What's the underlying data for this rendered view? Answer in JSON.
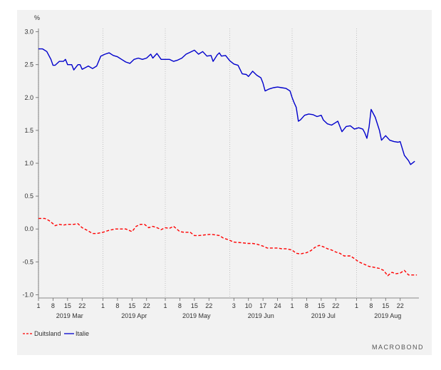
{
  "chart_data": {
    "type": "line",
    "ylabel": "%",
    "ylim": [
      -1.05,
      3.05
    ],
    "y_ticks": [
      "3.0",
      "2.5",
      "2.0",
      "1.5",
      "1.0",
      "0.5",
      "0.0",
      "-0.5",
      "-1.0"
    ],
    "y_tick_values": [
      3.0,
      2.5,
      2.0,
      1.5,
      1.0,
      0.5,
      0.0,
      -0.5,
      -1.0
    ],
    "x_range": [
      "2019-03-01",
      "2019-08-31"
    ],
    "x_ticks": [
      {
        "date": "2019-03-01",
        "label": "1"
      },
      {
        "date": "2019-03-08",
        "label": "8"
      },
      {
        "date": "2019-03-15",
        "label": "15"
      },
      {
        "date": "2019-03-22",
        "label": "22"
      },
      {
        "date": "2019-04-01",
        "label": "1"
      },
      {
        "date": "2019-04-08",
        "label": "8"
      },
      {
        "date": "2019-04-15",
        "label": "15"
      },
      {
        "date": "2019-04-22",
        "label": "22"
      },
      {
        "date": "2019-05-01",
        "label": "1"
      },
      {
        "date": "2019-05-08",
        "label": "8"
      },
      {
        "date": "2019-05-15",
        "label": "15"
      },
      {
        "date": "2019-05-22",
        "label": "22"
      },
      {
        "date": "2019-06-03",
        "label": "3"
      },
      {
        "date": "2019-06-10",
        "label": "10"
      },
      {
        "date": "2019-06-17",
        "label": "17"
      },
      {
        "date": "2019-06-24",
        "label": "24"
      },
      {
        "date": "2019-07-01",
        "label": "1"
      },
      {
        "date": "2019-07-08",
        "label": "8"
      },
      {
        "date": "2019-07-15",
        "label": "15"
      },
      {
        "date": "2019-07-22",
        "label": "22"
      },
      {
        "date": "2019-08-01",
        "label": "1"
      },
      {
        "date": "2019-08-08",
        "label": "8"
      },
      {
        "date": "2019-08-15",
        "label": "15"
      },
      {
        "date": "2019-08-22",
        "label": "22"
      }
    ],
    "month_labels": [
      {
        "date": "2019-03-16",
        "label": "2019 Mar"
      },
      {
        "date": "2019-04-16",
        "label": "2019 Apr"
      },
      {
        "date": "2019-05-16",
        "label": "2019 May"
      },
      {
        "date": "2019-06-16",
        "label": "2019 Jun"
      },
      {
        "date": "2019-07-16",
        "label": "2019 Jul"
      },
      {
        "date": "2019-08-16",
        "label": "2019 Aug"
      }
    ],
    "month_starts": [
      "2019-03-01",
      "2019-04-01",
      "2019-05-01",
      "2019-06-01",
      "2019-07-01",
      "2019-08-01"
    ],
    "grid": "vertical-dotted-month-starts",
    "legend_placement": "bottom-left",
    "series": [
      {
        "name": "Duitsland",
        "color": "#ff0000",
        "style": "dashed",
        "points": [
          [
            "2019-03-01",
            0.16
          ],
          [
            "2019-03-04",
            0.16
          ],
          [
            "2019-03-06",
            0.13
          ],
          [
            "2019-03-08",
            0.08
          ],
          [
            "2019-03-09",
            0.05
          ],
          [
            "2019-03-11",
            0.07
          ],
          [
            "2019-03-13",
            0.06
          ],
          [
            "2019-03-15",
            0.07
          ],
          [
            "2019-03-18",
            0.07
          ],
          [
            "2019-03-20",
            0.08
          ],
          [
            "2019-03-22",
            0.02
          ],
          [
            "2019-03-25",
            -0.03
          ],
          [
            "2019-03-27",
            -0.07
          ],
          [
            "2019-03-29",
            -0.07
          ],
          [
            "2019-04-01",
            -0.05
          ],
          [
            "2019-04-04",
            -0.02
          ],
          [
            "2019-04-07",
            0.0
          ],
          [
            "2019-04-09",
            0.0
          ],
          [
            "2019-04-12",
            0.0
          ],
          [
            "2019-04-15",
            -0.04
          ],
          [
            "2019-04-17",
            0.04
          ],
          [
            "2019-04-19",
            0.07
          ],
          [
            "2019-04-21",
            0.07
          ],
          [
            "2019-04-23",
            0.02
          ],
          [
            "2019-04-25",
            0.04
          ],
          [
            "2019-04-27",
            0.02
          ],
          [
            "2019-04-29",
            -0.01
          ],
          [
            "2019-05-01",
            0.02
          ],
          [
            "2019-05-03",
            0.01
          ],
          [
            "2019-05-05",
            0.04
          ],
          [
            "2019-05-08",
            -0.04
          ],
          [
            "2019-05-10",
            -0.05
          ],
          [
            "2019-05-13",
            -0.05
          ],
          [
            "2019-05-15",
            -0.1
          ],
          [
            "2019-05-17",
            -0.1
          ],
          [
            "2019-05-20",
            -0.09
          ],
          [
            "2019-05-23",
            -0.08
          ],
          [
            "2019-05-27",
            -0.1
          ],
          [
            "2019-05-29",
            -0.14
          ],
          [
            "2019-05-31",
            -0.16
          ],
          [
            "2019-06-03",
            -0.2
          ],
          [
            "2019-06-07",
            -0.21
          ],
          [
            "2019-06-10",
            -0.22
          ],
          [
            "2019-06-12",
            -0.22
          ],
          [
            "2019-06-14",
            -0.23
          ],
          [
            "2019-06-17",
            -0.26
          ],
          [
            "2019-06-19",
            -0.29
          ],
          [
            "2019-06-21",
            -0.29
          ],
          [
            "2019-06-24",
            -0.29
          ],
          [
            "2019-06-26",
            -0.3
          ],
          [
            "2019-06-28",
            -0.3
          ],
          [
            "2019-07-01",
            -0.32
          ],
          [
            "2019-07-03",
            -0.37
          ],
          [
            "2019-07-05",
            -0.38
          ],
          [
            "2019-07-08",
            -0.36
          ],
          [
            "2019-07-10",
            -0.33
          ],
          [
            "2019-07-12",
            -0.28
          ],
          [
            "2019-07-14",
            -0.25
          ],
          [
            "2019-07-16",
            -0.27
          ],
          [
            "2019-07-18",
            -0.3
          ],
          [
            "2019-07-20",
            -0.32
          ],
          [
            "2019-07-22",
            -0.35
          ],
          [
            "2019-07-24",
            -0.37
          ],
          [
            "2019-07-26",
            -0.41
          ],
          [
            "2019-07-29",
            -0.41
          ],
          [
            "2019-07-31",
            -0.45
          ],
          [
            "2019-08-02",
            -0.5
          ],
          [
            "2019-08-05",
            -0.54
          ],
          [
            "2019-08-07",
            -0.57
          ],
          [
            "2019-08-09",
            -0.58
          ],
          [
            "2019-08-12",
            -0.6
          ],
          [
            "2019-08-14",
            -0.63
          ],
          [
            "2019-08-16",
            -0.71
          ],
          [
            "2019-08-18",
            -0.66
          ],
          [
            "2019-08-20",
            -0.68
          ],
          [
            "2019-08-22",
            -0.67
          ],
          [
            "2019-08-24",
            -0.63
          ],
          [
            "2019-08-26",
            -0.7
          ],
          [
            "2019-08-28",
            -0.7
          ],
          [
            "2019-08-30",
            -0.7
          ]
        ]
      },
      {
        "name": "Italie",
        "color": "#0000cc",
        "style": "solid",
        "points": [
          [
            "2019-03-01",
            2.74
          ],
          [
            "2019-03-03",
            2.74
          ],
          [
            "2019-03-05",
            2.7
          ],
          [
            "2019-03-07",
            2.58
          ],
          [
            "2019-03-08",
            2.49
          ],
          [
            "2019-03-09",
            2.49
          ],
          [
            "2019-03-11",
            2.55
          ],
          [
            "2019-03-13",
            2.55
          ],
          [
            "2019-03-14",
            2.58
          ],
          [
            "2019-03-15",
            2.5
          ],
          [
            "2019-03-17",
            2.5
          ],
          [
            "2019-03-18",
            2.42
          ],
          [
            "2019-03-20",
            2.5
          ],
          [
            "2019-03-21",
            2.5
          ],
          [
            "2019-03-22",
            2.43
          ],
          [
            "2019-03-25",
            2.48
          ],
          [
            "2019-03-27",
            2.44
          ],
          [
            "2019-03-29",
            2.48
          ],
          [
            "2019-03-31",
            2.63
          ],
          [
            "2019-04-02",
            2.66
          ],
          [
            "2019-04-04",
            2.68
          ],
          [
            "2019-04-06",
            2.64
          ],
          [
            "2019-04-08",
            2.62
          ],
          [
            "2019-04-10",
            2.58
          ],
          [
            "2019-04-12",
            2.54
          ],
          [
            "2019-04-14",
            2.52
          ],
          [
            "2019-04-16",
            2.58
          ],
          [
            "2019-04-18",
            2.6
          ],
          [
            "2019-04-20",
            2.58
          ],
          [
            "2019-04-22",
            2.6
          ],
          [
            "2019-04-24",
            2.66
          ],
          [
            "2019-04-25",
            2.6
          ],
          [
            "2019-04-27",
            2.67
          ],
          [
            "2019-04-29",
            2.58
          ],
          [
            "2019-05-01",
            2.58
          ],
          [
            "2019-05-03",
            2.58
          ],
          [
            "2019-05-05",
            2.55
          ],
          [
            "2019-05-07",
            2.57
          ],
          [
            "2019-05-09",
            2.6
          ],
          [
            "2019-05-11",
            2.66
          ],
          [
            "2019-05-13",
            2.69
          ],
          [
            "2019-05-15",
            2.72
          ],
          [
            "2019-05-17",
            2.66
          ],
          [
            "2019-05-19",
            2.7
          ],
          [
            "2019-05-21",
            2.63
          ],
          [
            "2019-05-23",
            2.64
          ],
          [
            "2019-05-24",
            2.55
          ],
          [
            "2019-05-26",
            2.65
          ],
          [
            "2019-05-27",
            2.68
          ],
          [
            "2019-05-28",
            2.63
          ],
          [
            "2019-05-30",
            2.64
          ],
          [
            "2019-06-01",
            2.56
          ],
          [
            "2019-06-03",
            2.51
          ],
          [
            "2019-06-05",
            2.49
          ],
          [
            "2019-06-07",
            2.36
          ],
          [
            "2019-06-09",
            2.35
          ],
          [
            "2019-06-10",
            2.32
          ],
          [
            "2019-06-12",
            2.4
          ],
          [
            "2019-06-14",
            2.34
          ],
          [
            "2019-06-16",
            2.3
          ],
          [
            "2019-06-17",
            2.22
          ],
          [
            "2019-06-18",
            2.1
          ],
          [
            "2019-06-20",
            2.13
          ],
          [
            "2019-06-22",
            2.15
          ],
          [
            "2019-06-24",
            2.16
          ],
          [
            "2019-06-26",
            2.15
          ],
          [
            "2019-06-28",
            2.14
          ],
          [
            "2019-06-30",
            2.1
          ],
          [
            "2019-07-01",
            2.0
          ],
          [
            "2019-07-02",
            1.92
          ],
          [
            "2019-07-03",
            1.85
          ],
          [
            "2019-07-04",
            1.64
          ],
          [
            "2019-07-05",
            1.66
          ],
          [
            "2019-07-07",
            1.73
          ],
          [
            "2019-07-09",
            1.75
          ],
          [
            "2019-07-11",
            1.74
          ],
          [
            "2019-07-13",
            1.71
          ],
          [
            "2019-07-15",
            1.73
          ],
          [
            "2019-07-16",
            1.66
          ],
          [
            "2019-07-18",
            1.6
          ],
          [
            "2019-07-20",
            1.58
          ],
          [
            "2019-07-22",
            1.62
          ],
          [
            "2019-07-23",
            1.64
          ],
          [
            "2019-07-25",
            1.48
          ],
          [
            "2019-07-27",
            1.56
          ],
          [
            "2019-07-29",
            1.57
          ],
          [
            "2019-07-31",
            1.52
          ],
          [
            "2019-08-02",
            1.54
          ],
          [
            "2019-08-04",
            1.52
          ],
          [
            "2019-08-05",
            1.46
          ],
          [
            "2019-08-06",
            1.38
          ],
          [
            "2019-08-07",
            1.55
          ],
          [
            "2019-08-08",
            1.82
          ],
          [
            "2019-08-10",
            1.7
          ],
          [
            "2019-08-12",
            1.5
          ],
          [
            "2019-08-13",
            1.35
          ],
          [
            "2019-08-15",
            1.42
          ],
          [
            "2019-08-17",
            1.35
          ],
          [
            "2019-08-19",
            1.33
          ],
          [
            "2019-08-21",
            1.32
          ],
          [
            "2019-08-22",
            1.33
          ],
          [
            "2019-08-24",
            1.12
          ],
          [
            "2019-08-26",
            1.04
          ],
          [
            "2019-08-27",
            0.98
          ],
          [
            "2019-08-29",
            1.03
          ]
        ]
      }
    ]
  },
  "legend": {
    "items": [
      {
        "label": "Duitsland",
        "color": "#ff0000",
        "style": "dashed"
      },
      {
        "label": "Italie",
        "color": "#0000cc",
        "style": "solid"
      }
    ]
  },
  "brand": {
    "text": "MACROBOND"
  }
}
